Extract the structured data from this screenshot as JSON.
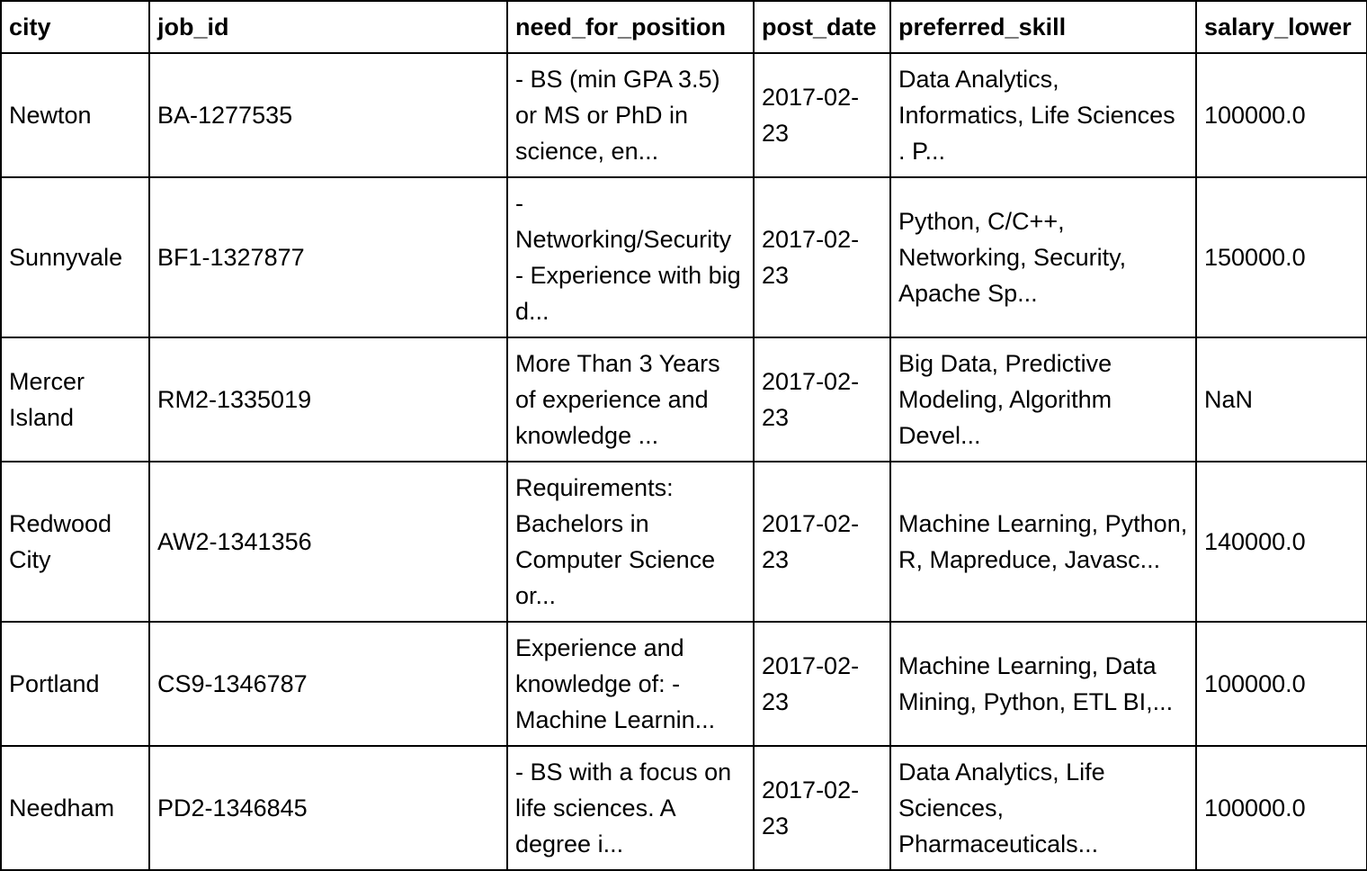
{
  "table": {
    "columns": [
      "city",
      "job_id",
      "need_for_position",
      "post_date",
      "preferred_skill",
      "salary_lower"
    ],
    "rows": [
      {
        "city": "Newton",
        "job_id": "BA-1277535",
        "need_for_position": "- BS (min GPA 3.5) or MS or PhD in science, en...",
        "post_date": "2017-02-23",
        "preferred_skill": "Data Analytics, Informatics, Life Sciences . P...",
        "salary_lower": "100000.0"
      },
      {
        "city": "Sunnyvale",
        "job_id": "BF1-1327877",
        "need_for_position": "- Networking/Security - Experience with big d...",
        "post_date": "2017-02-23",
        "preferred_skill": "Python, C/C++, Networking, Security, Apache Sp...",
        "salary_lower": "150000.0"
      },
      {
        "city": "Mercer Island",
        "job_id": "RM2-1335019",
        "need_for_position": "More Than 3 Years of experience and knowledge ...",
        "post_date": "2017-02-23",
        "preferred_skill": "Big Data, Predictive Modeling, Algorithm Devel...",
        "salary_lower": "NaN"
      },
      {
        "city": "Redwood City",
        "job_id": "AW2-1341356",
        "need_for_position": "Requirements: Bachelors in Computer Science or...",
        "post_date": "2017-02-23",
        "preferred_skill": "Machine Learning, Python, R, Mapreduce, Javasc...",
        "salary_lower": "140000.0"
      },
      {
        "city": "Portland",
        "job_id": "CS9-1346787",
        "need_for_position": "Experience and knowledge of: - Machine Learnin...",
        "post_date": "2017-02-23",
        "preferred_skill": "Machine Learning, Data Mining, Python, ETL BI,...",
        "salary_lower": "100000.0"
      },
      {
        "city": "Needham",
        "job_id": "PD2-1346845",
        "need_for_position": "- BS with a focus on life sciences. A degree i...",
        "post_date": "2017-02-23",
        "preferred_skill": "Data Analytics, Life Sciences, Pharmaceuticals...",
        "salary_lower": "100000.0"
      }
    ]
  }
}
